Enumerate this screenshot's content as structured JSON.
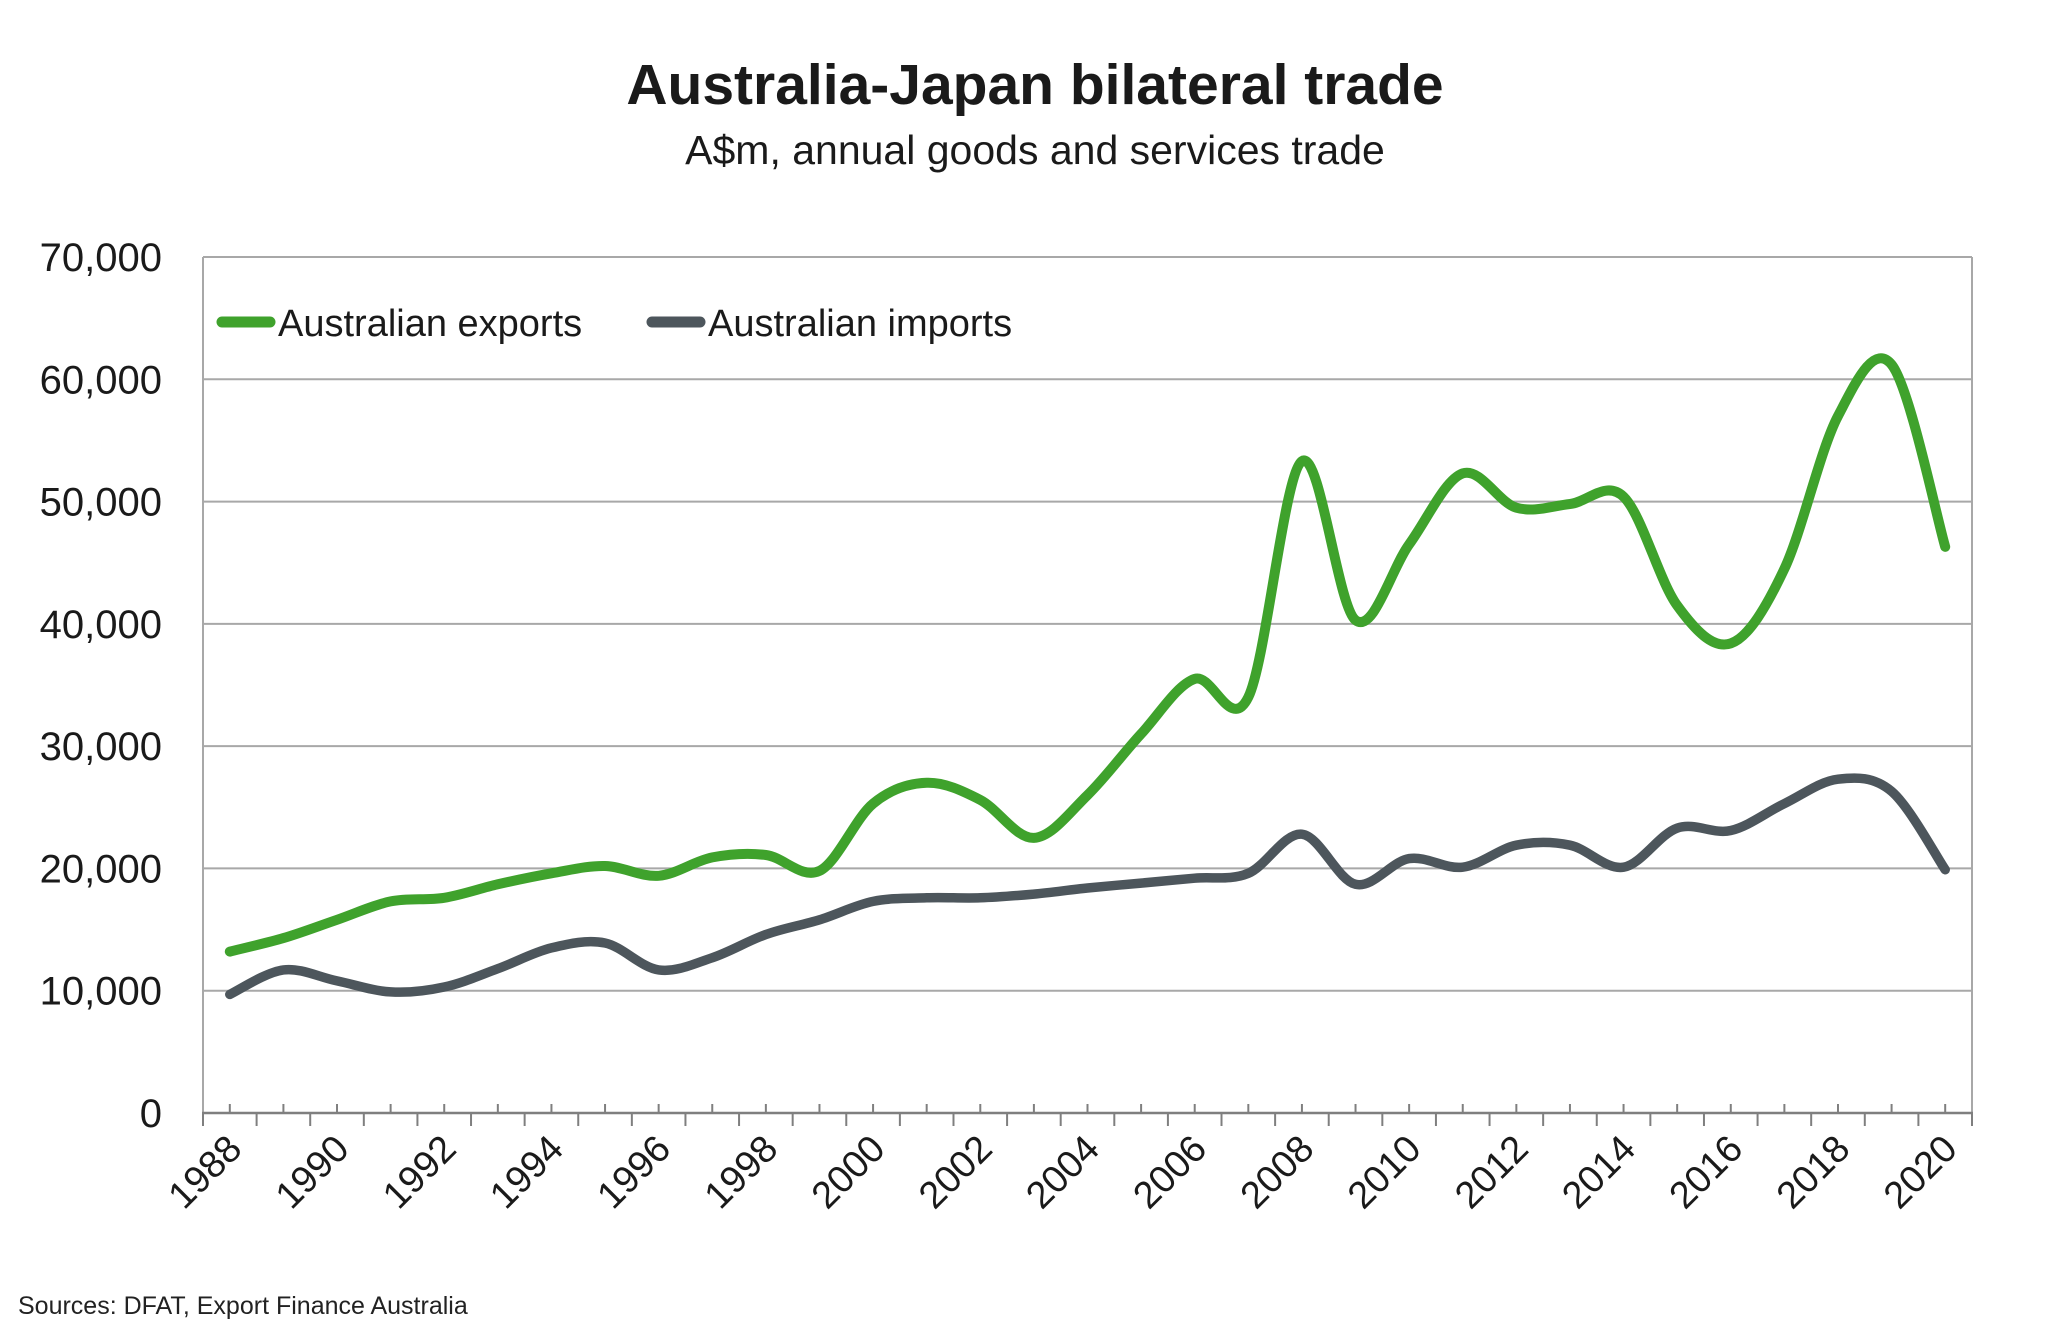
{
  "title": "Australia-Japan bilateral trade",
  "subtitle": "A$m, annual goods and services trade",
  "source": "Sources: DFAT, Export Finance Australia",
  "colors": {
    "exports_green": "#3FA22C",
    "imports_grey": "#4D565C",
    "gridline": "#A8A8A8",
    "axis": "#7F7F7F",
    "frame": "#A8A8A8",
    "text": "#1A1A1A"
  },
  "chart_data": {
    "type": "line",
    "title": "Australia-Japan bilateral trade",
    "subtitle": "A$m, annual goods and services trade",
    "xlabel": "",
    "ylabel": "A$m",
    "grid": "horizontal",
    "smooth": true,
    "legend_position": "top-left-inside",
    "ylim": [
      0,
      70000
    ],
    "yticks": [
      0,
      10000,
      20000,
      30000,
      40000,
      50000,
      60000,
      70000
    ],
    "ytick_labels": [
      "0",
      "10,000",
      "20,000",
      "30,000",
      "40,000",
      "50,000",
      "60,000",
      "70,000"
    ],
    "xtick_labels": [
      1988,
      1990,
      1992,
      1994,
      1996,
      1998,
      2000,
      2002,
      2004,
      2006,
      2008,
      2010,
      2012,
      2014,
      2016,
      2018,
      2020
    ],
    "x": [
      1988,
      1989,
      1990,
      1991,
      1992,
      1993,
      1994,
      1995,
      1996,
      1997,
      1998,
      1999,
      2000,
      2001,
      2002,
      2003,
      2004,
      2005,
      2006,
      2007,
      2008,
      2009,
      2010,
      2011,
      2012,
      2013,
      2014,
      2015,
      2016,
      2017,
      2018,
      2019,
      2020
    ],
    "series": [
      {
        "name": "Australian exports",
        "color": "#3FA22C",
        "values": [
          13200,
          14300,
          15800,
          17300,
          17600,
          18700,
          19600,
          20200,
          19400,
          20900,
          21100,
          19800,
          25300,
          27000,
          25600,
          22500,
          26000,
          31000,
          35500,
          34000,
          53300,
          40300,
          46500,
          52300,
          49500,
          49800,
          50400,
          41500,
          38400,
          44500,
          57000,
          61200,
          46300
        ]
      },
      {
        "name": "Australian imports",
        "color": "#4D565C",
        "values": [
          9700,
          11700,
          10800,
          9900,
          10300,
          11800,
          13500,
          13900,
          11700,
          12700,
          14600,
          15800,
          17300,
          17600,
          17600,
          17900,
          18400,
          18800,
          19200,
          19600,
          22800,
          18700,
          20800,
          20100,
          21900,
          21900,
          20100,
          23300,
          23100,
          25300,
          27300,
          26300,
          19900
        ]
      }
    ]
  }
}
